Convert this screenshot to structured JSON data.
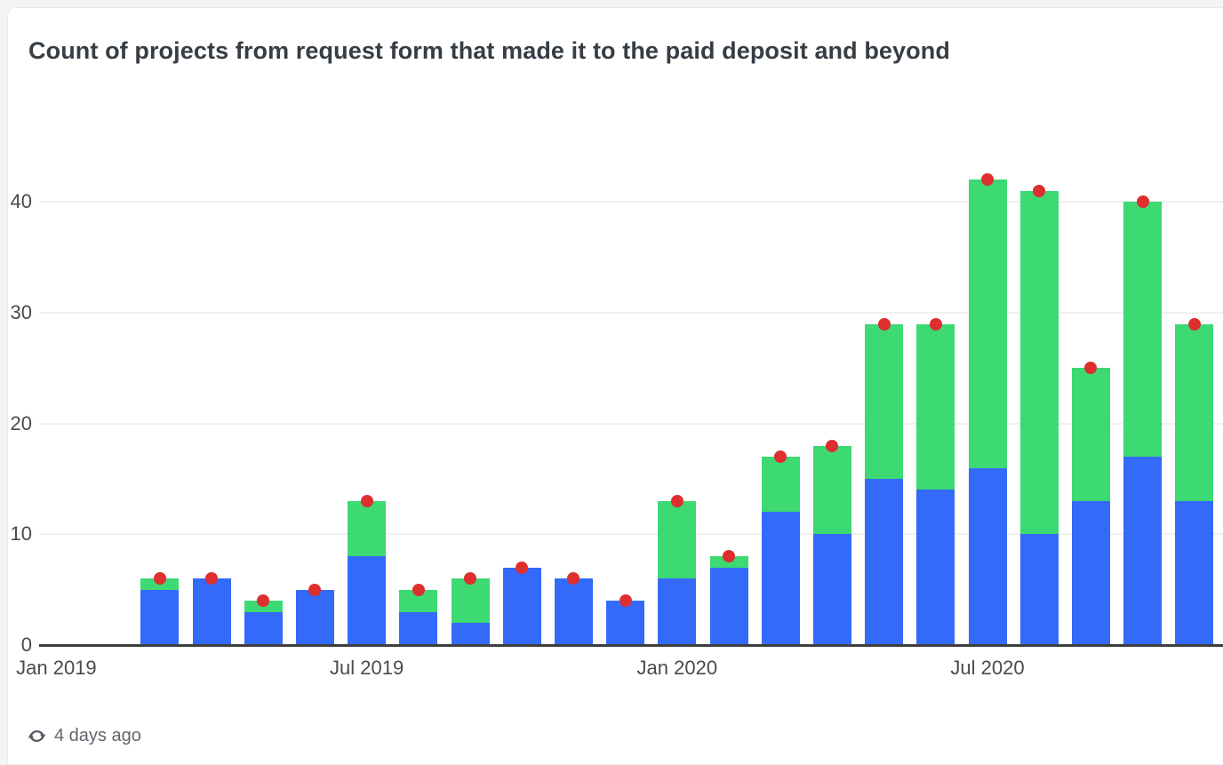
{
  "card": {
    "title": "Count of projects from request form that made it to the paid deposit and beyond",
    "footer": {
      "updated_label": "4 days ago"
    }
  },
  "colors": {
    "blue": "#346AFA",
    "green": "#3DD973",
    "red": "#DE2E2E",
    "page_bg": "#F3F4F5",
    "card_bg": "#FFFFFF",
    "card_border": "#EAEAEA",
    "gridline": "#F0F0F0",
    "axis_line": "#3E3E3E",
    "axis_text": "#4A4A4A",
    "title_text": "#363D45",
    "footer_text": "#60666D"
  },
  "icons": {
    "refresh": "refresh-icon"
  },
  "chart_data": {
    "type": "bar",
    "stacked": true,
    "title": "Count of projects from request form that made it to the paid deposit and beyond",
    "xlabel": "",
    "ylabel": "",
    "ylim": [
      0,
      45
    ],
    "y_ticks": [
      0,
      10,
      20,
      30,
      40
    ],
    "grid": "horizontal-only",
    "legend": "none",
    "x_type": "monthly-timeseries",
    "x_tick_labels": [
      {
        "label": "Jan 2019",
        "month_offset": 0
      },
      {
        "label": "Jul 2019",
        "month_offset": 6
      },
      {
        "label": "Jan 2020",
        "month_offset": 12
      },
      {
        "label": "Jul 2020",
        "month_offset": 18
      }
    ],
    "first_bar_month_offset": 2,
    "categories": [
      "Mar 2019",
      "Apr 2019",
      "May 2019",
      "Jun 2019",
      "Jul 2019",
      "Aug 2019",
      "Sep 2019",
      "Oct 2019",
      "Nov 2019",
      "Dec 2019",
      "Jan 2020",
      "Feb 2020",
      "Mar 2020",
      "Apr 2020",
      "May 2020",
      "Jun 2020",
      "Jul 2020",
      "Aug 2020",
      "Sep 2020",
      "Oct 2020",
      "Nov 2020"
    ],
    "series": [
      {
        "name": "blue-bottom-segment",
        "render": "bar",
        "color_key": "blue",
        "values": [
          5,
          6,
          3,
          5,
          8,
          3,
          2,
          7,
          6,
          4,
          6,
          7,
          12,
          10,
          15,
          14,
          16,
          10,
          13,
          17,
          13
        ]
      },
      {
        "name": "green-top-segment",
        "render": "bar",
        "color_key": "green",
        "values": [
          1,
          0,
          1,
          0,
          5,
          2,
          4,
          0,
          0,
          0,
          7,
          1,
          5,
          8,
          14,
          15,
          26,
          31,
          12,
          23,
          16
        ]
      },
      {
        "name": "red-total-dot",
        "render": "scatter",
        "color_key": "red",
        "values": [
          6,
          6,
          4,
          5,
          13,
          5,
          6,
          7,
          6,
          4,
          13,
          8,
          17,
          18,
          29,
          29,
          42,
          41,
          25,
          40,
          29
        ]
      }
    ]
  }
}
